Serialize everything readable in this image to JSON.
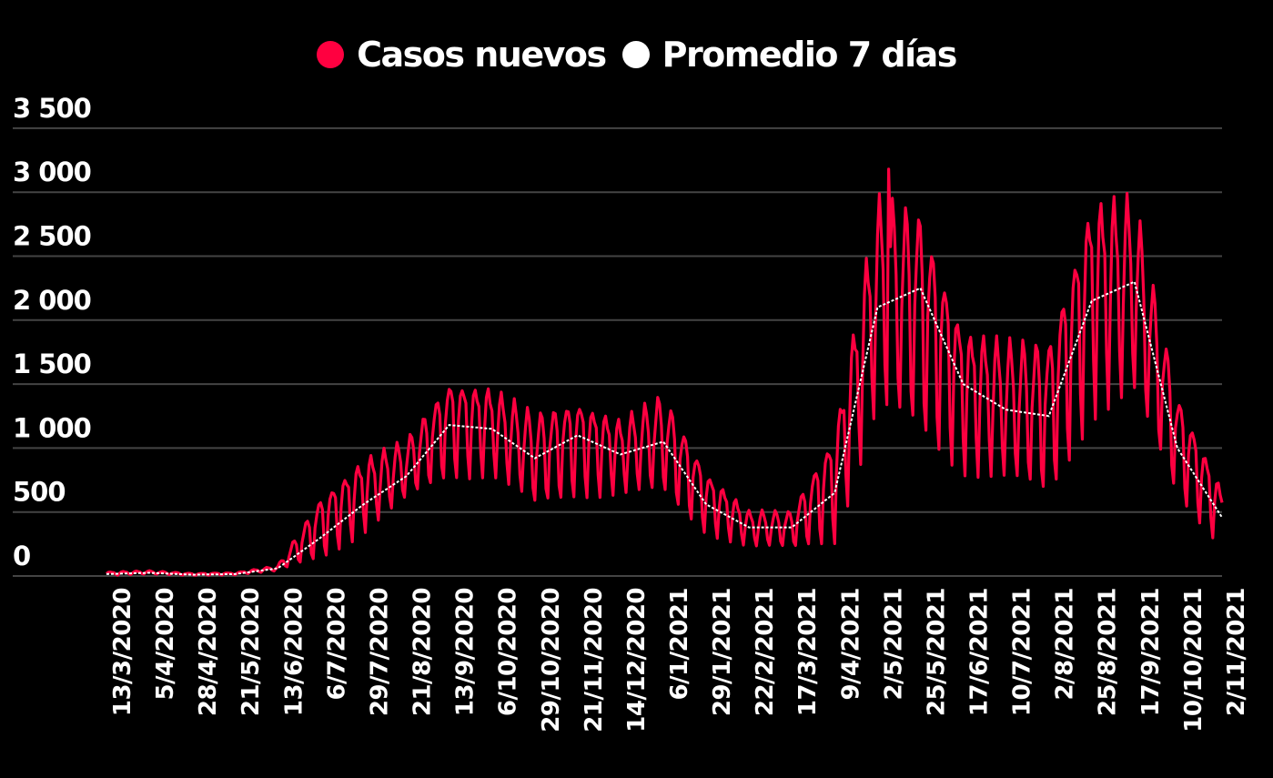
{
  "chart_data": {
    "type": "line",
    "title": "",
    "xlabel": "",
    "ylabel": "",
    "ylim": [
      0,
      3500
    ],
    "yticks": [
      0,
      500,
      1000,
      1500,
      2000,
      2500,
      3000,
      3500
    ],
    "ytick_labels": [
      "0",
      "500",
      "1 000",
      "1 500",
      "2 000",
      "2 500",
      "3 000",
      "3 500"
    ],
    "grid": true,
    "legend_position": "top",
    "x_tick_labels": [
      "13/3/2020",
      "5/4/2020",
      "28/4/2020",
      "21/5/2020",
      "13/6/2020",
      "6/7/2020",
      "29/7/2020",
      "21/8/2020",
      "13/9/2020",
      "6/10/2020",
      "29/10/2020",
      "21/11/2020",
      "14/12/2020",
      "6/1/2021",
      "29/1/2021",
      "22/2/2021",
      "17/3/2021",
      "9/4/2021",
      "2/5/2021",
      "25/5/2021",
      "17/6/2021",
      "10/7/2021",
      "2/8/2021",
      "25/8/2021",
      "17/9/2021",
      "10/10/2021",
      "2/11/2021"
    ],
    "x_tick_interval_days": 23,
    "categories": [
      "13/3/2020",
      "5/4/2020",
      "28/4/2020",
      "21/5/2020",
      "13/6/2020",
      "6/7/2020",
      "29/7/2020",
      "21/8/2020",
      "13/9/2020",
      "6/10/2020",
      "29/10/2020",
      "21/11/2020",
      "14/12/2020",
      "6/1/2021",
      "29/1/2021",
      "22/2/2021",
      "17/3/2021",
      "9/4/2021",
      "2/5/2021",
      "25/5/2021",
      "17/6/2021",
      "10/7/2021",
      "2/8/2021",
      "25/8/2021",
      "17/9/2021",
      "10/10/2021",
      "2/11/2021"
    ],
    "series": [
      {
        "name": "Casos nuevos",
        "color": "#ff0040",
        "style": "solid",
        "weekly_high": [
          30,
          40,
          20,
          25,
          80,
          600,
          900,
          1050,
          1500,
          1450,
          1250,
          1350,
          1200,
          1400,
          800,
          500,
          500,
          1100,
          2900,
          2800,
          1900,
          1800,
          1800,
          2900,
          2900,
          1400,
          700
        ],
        "weekly_low": [
          5,
          15,
          5,
          10,
          40,
          150,
          350,
          600,
          800,
          800,
          550,
          650,
          650,
          650,
          350,
          230,
          220,
          300,
          1300,
          1150,
          850,
          750,
          650,
          1300,
          1400,
          650,
          260
        ],
        "values": [
          15,
          30,
          15,
          20,
          60,
          300,
          560,
          780,
          1180,
          1150,
          920,
          1100,
          950,
          1050,
          560,
          380,
          380,
          650,
          2100,
          2250,
          1500,
          1300,
          1250,
          2150,
          2300,
          1000,
          480
        ],
        "peak_max": 3180
      },
      {
        "name": "Promedio 7 días",
        "color": "#ffffff",
        "style": "dotted",
        "values": [
          15,
          25,
          10,
          15,
          60,
          300,
          560,
          780,
          1180,
          1150,
          920,
          1100,
          950,
          1050,
          560,
          380,
          380,
          650,
          2100,
          2250,
          1500,
          1300,
          1250,
          2150,
          2300,
          1000,
          480
        ]
      }
    ]
  },
  "legend": {
    "items": [
      {
        "label": "Casos nuevos",
        "color": "#ff0040"
      },
      {
        "label": "Promedio 7 días",
        "color": "#ffffff"
      }
    ]
  },
  "colors": {
    "background": "#000000",
    "grid": "#444444",
    "text": "#ffffff"
  }
}
